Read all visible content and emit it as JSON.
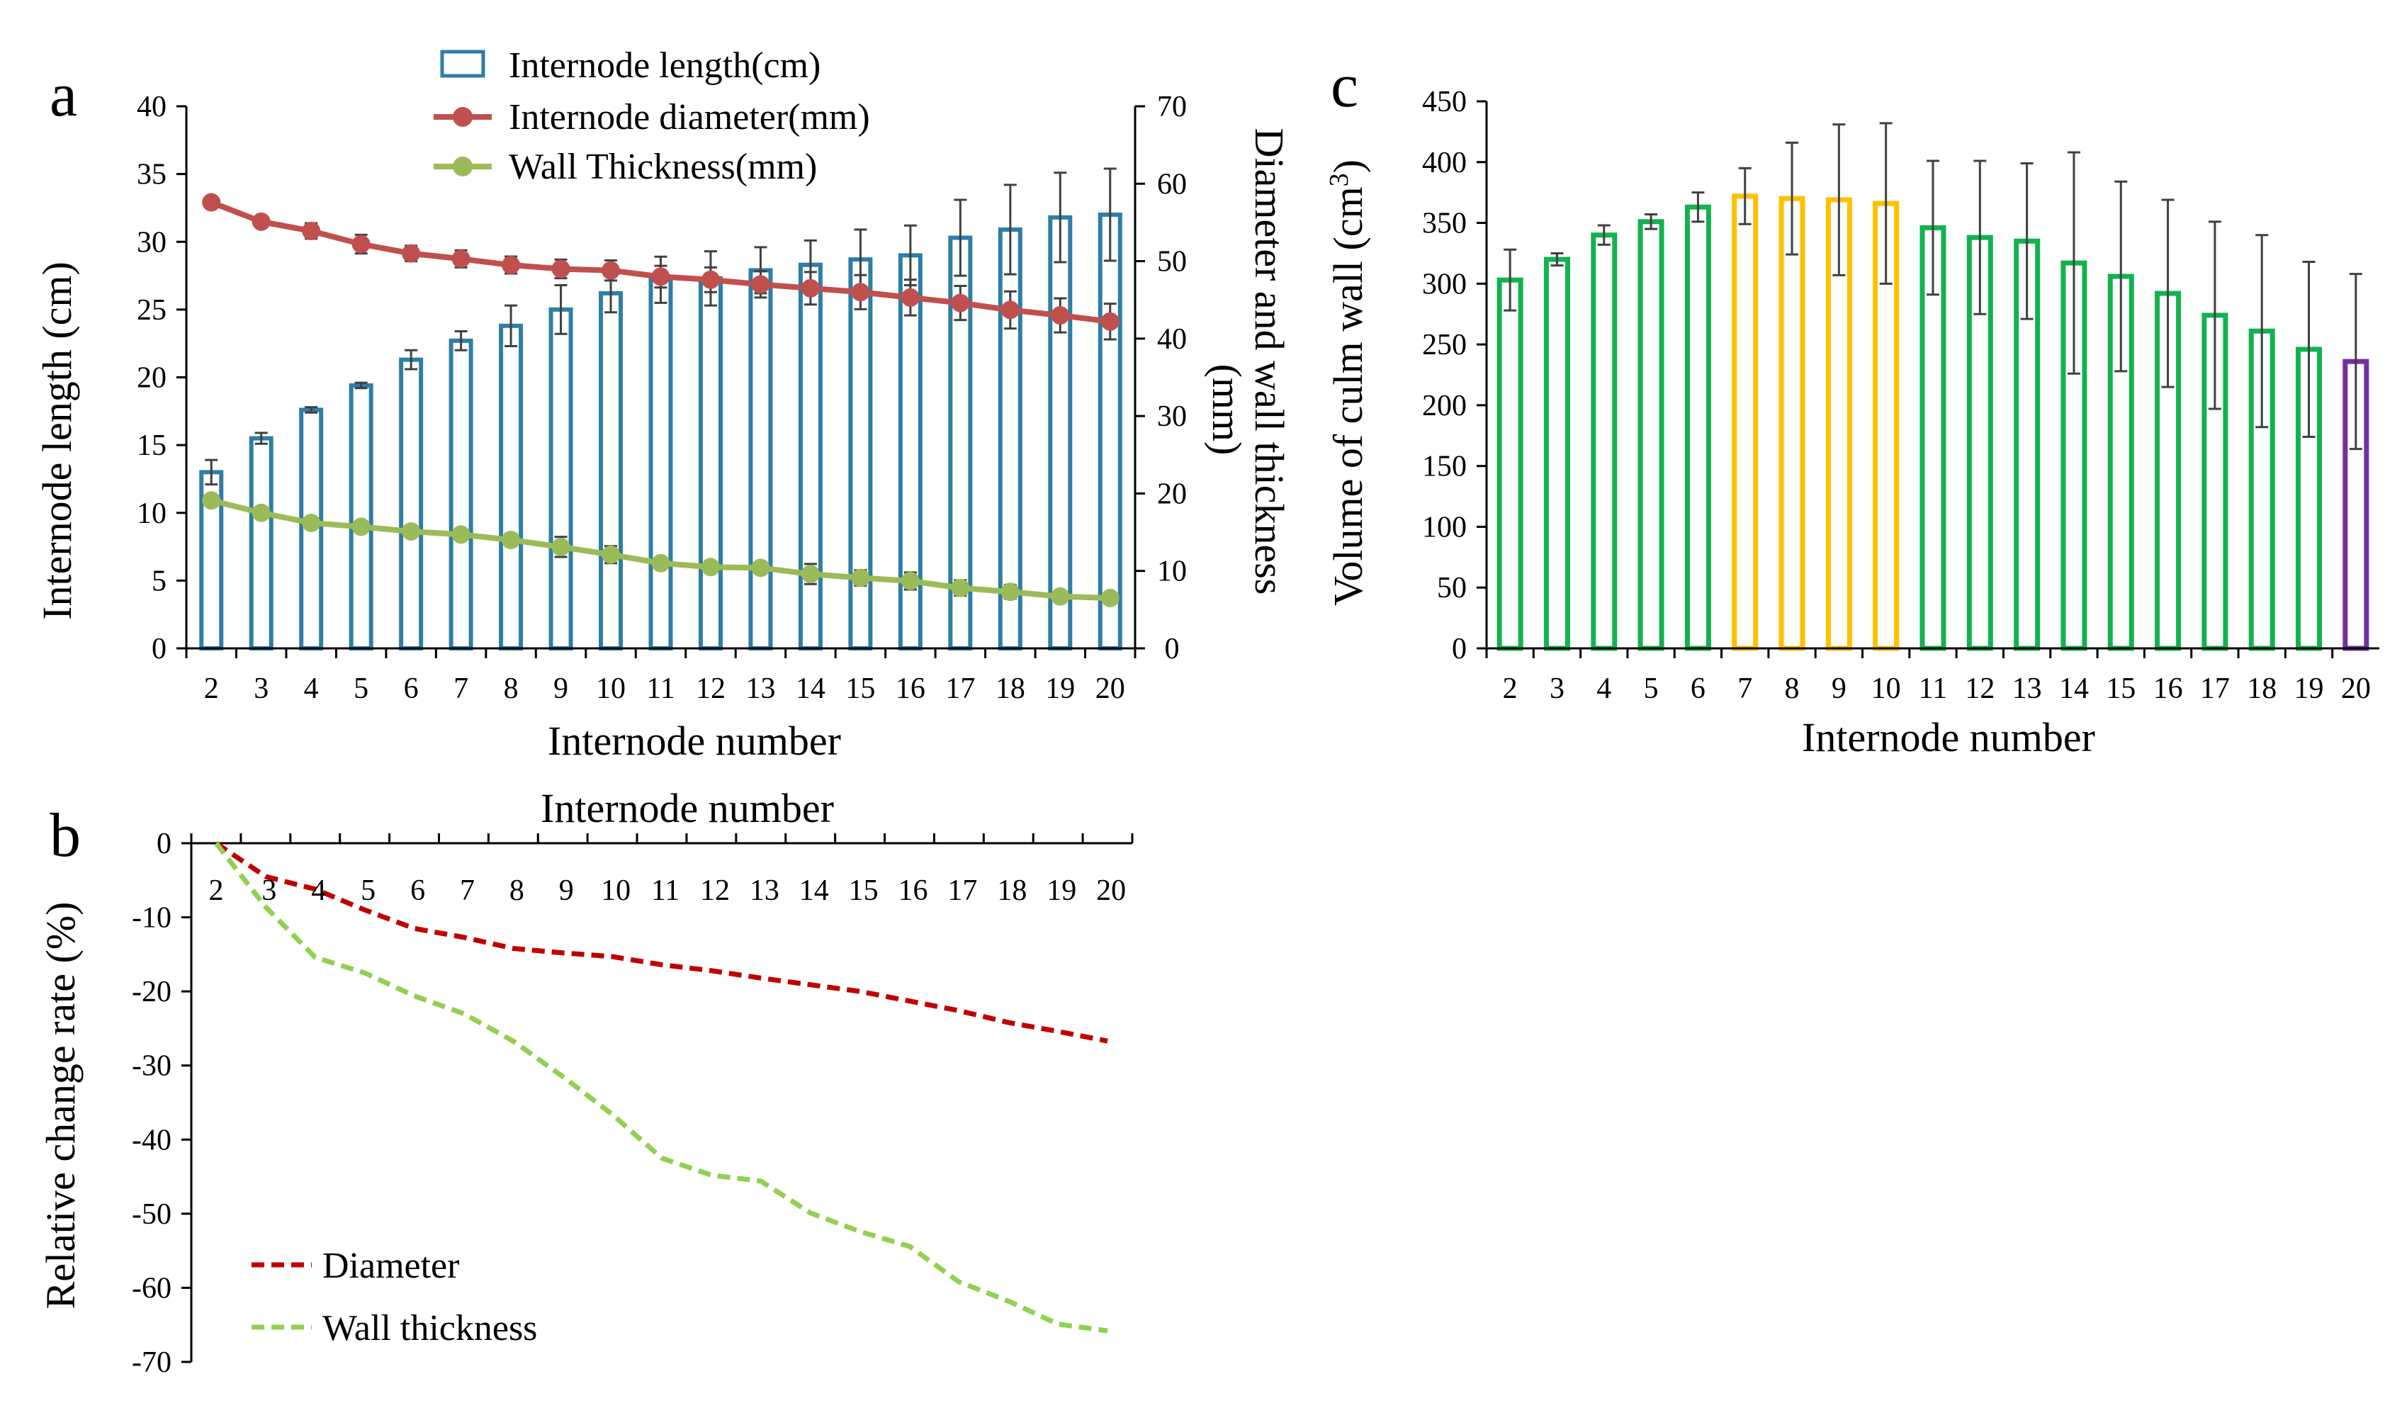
{
  "panels": {
    "a": {
      "letter": "a"
    },
    "b": {
      "letter": "b"
    },
    "c": {
      "letter": "c"
    }
  },
  "chart_data": [
    {
      "id": "a",
      "type": "bar+line",
      "xlabel": "Internode number",
      "ylabel": "Internode length (cm)",
      "y2label_line1": "Diameter and wall thickness",
      "y2label_line2": "(mm)",
      "ylim": [
        0,
        40
      ],
      "yticks": [
        0,
        5,
        10,
        15,
        20,
        25,
        30,
        35,
        40
      ],
      "y2lim": [
        0,
        70
      ],
      "y2ticks": [
        0,
        10,
        20,
        30,
        40,
        50,
        60,
        70
      ],
      "categories": [
        "2",
        "3",
        "4",
        "5",
        "6",
        "7",
        "8",
        "9",
        "10",
        "11",
        "12",
        "13",
        "14",
        "15",
        "16",
        "17",
        "18",
        "19",
        "20"
      ],
      "bar_series": {
        "name": "Internode length(cm)",
        "color": "#2e7ea6",
        "values": [
          13.0,
          15.5,
          17.6,
          19.4,
          21.3,
          22.7,
          23.8,
          25.0,
          26.2,
          27.2,
          27.3,
          27.9,
          28.3,
          28.7,
          29.0,
          30.3,
          30.9,
          31.8,
          32.0
        ],
        "errors": [
          0.9,
          0.4,
          0.2,
          0.2,
          0.7,
          0.7,
          1.5,
          1.8,
          1.4,
          1.7,
          2.0,
          1.7,
          1.8,
          2.2,
          2.2,
          2.8,
          3.3,
          3.3,
          3.4
        ]
      },
      "line_series": [
        {
          "name": "Internode diameter(mm)",
          "color": "#c0504d",
          "axis": "y2",
          "values": [
            57.6,
            55.1,
            53.9,
            52.2,
            51.0,
            50.3,
            49.5,
            49.0,
            48.8,
            48.0,
            47.6,
            47.0,
            46.5,
            46.0,
            45.3,
            44.6,
            43.7,
            43.0,
            42.2
          ],
          "errors": [
            0.5,
            0.6,
            1.0,
            1.2,
            1.0,
            1.1,
            1.1,
            1.2,
            1.3,
            1.4,
            1.6,
            1.7,
            2.1,
            2.2,
            2.3,
            2.2,
            2.4,
            2.2,
            2.3
          ]
        },
        {
          "name": "Wall Thickness(mm)",
          "color": "#9bbb59",
          "axis": "y2",
          "values": [
            19.1,
            17.5,
            16.2,
            15.7,
            15.1,
            14.7,
            14.0,
            13.1,
            12.1,
            11.0,
            10.5,
            10.4,
            9.6,
            9.1,
            8.7,
            7.8,
            7.3,
            6.7,
            6.5
          ],
          "errors": [
            0.4,
            0.3,
            0.3,
            0.3,
            0.5,
            0.6,
            0.8,
            1.3,
            1.1,
            0.6,
            0.6,
            0.6,
            1.3,
            1.0,
            1.1,
            1.0,
            0.9,
            0.5,
            0.6
          ]
        }
      ],
      "legend_position": "top"
    },
    {
      "id": "b",
      "type": "line",
      "xlabel": "Internode number",
      "ylabel": "Relative change rate (%)",
      "ylim": [
        -70,
        0
      ],
      "yticks": [
        0,
        -10,
        -20,
        -30,
        -40,
        -50,
        -60,
        -70
      ],
      "categories": [
        "2",
        "3",
        "4",
        "5",
        "6",
        "7",
        "8",
        "9",
        "10",
        "11",
        "12",
        "13",
        "14",
        "15",
        "16",
        "17",
        "18",
        "19",
        "20"
      ],
      "series": [
        {
          "name": "Diameter",
          "color": "#c00000",
          "style": "dashed",
          "values": [
            0,
            -4.5,
            -6.2,
            -9.0,
            -11.5,
            -12.7,
            -14.2,
            -14.8,
            -15.3,
            -16.4,
            -17.2,
            -18.2,
            -19.1,
            -20.0,
            -21.3,
            -22.6,
            -24.2,
            -25.4,
            -26.7
          ]
        },
        {
          "name": "Wall thickness",
          "color": "#92d050",
          "style": "dashed",
          "values": [
            0,
            -8.6,
            -15.4,
            -17.5,
            -20.6,
            -23.0,
            -26.7,
            -31.5,
            -36.6,
            -42.5,
            -44.8,
            -45.6,
            -49.9,
            -52.4,
            -54.4,
            -59.2,
            -61.8,
            -64.9,
            -65.8
          ]
        }
      ],
      "legend_position": "bottom-left"
    },
    {
      "id": "c",
      "type": "bar",
      "xlabel": "Internode number",
      "ylabel": "Volume of culm wall (cm³)",
      "ylabel_main": "Volume of culm wall (cm",
      "ylabel_sup": "3",
      "ylabel_close": ")",
      "ylim": [
        0,
        450
      ],
      "yticks": [
        0,
        50,
        100,
        150,
        200,
        250,
        300,
        350,
        400,
        450
      ],
      "categories": [
        "2",
        "3",
        "4",
        "5",
        "6",
        "7",
        "8",
        "9",
        "10",
        "11",
        "12",
        "13",
        "14",
        "15",
        "16",
        "17",
        "18",
        "19",
        "20"
      ],
      "values": [
        303,
        320,
        340,
        351,
        363,
        372,
        370,
        369,
        366,
        346,
        338,
        335,
        317,
        306,
        292,
        274,
        261,
        246,
        236
      ],
      "errors": [
        25,
        5,
        8,
        6,
        12,
        23,
        46,
        62,
        66,
        55,
        63,
        64,
        91,
        78,
        77,
        77,
        79,
        72,
        72
      ],
      "colors": [
        "#13b24f",
        "#13b24f",
        "#13b24f",
        "#13b24f",
        "#13b24f",
        "#ffc000",
        "#ffc000",
        "#ffc000",
        "#ffc000",
        "#13b24f",
        "#13b24f",
        "#13b24f",
        "#13b24f",
        "#13b24f",
        "#13b24f",
        "#13b24f",
        "#13b24f",
        "#13b24f",
        "#7030a0"
      ]
    }
  ]
}
